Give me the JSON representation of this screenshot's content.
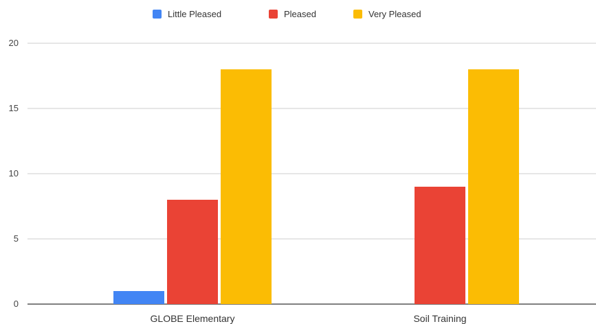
{
  "chart_data": {
    "type": "bar",
    "categories": [
      "GLOBE Elementary",
      "Soil Training"
    ],
    "series": [
      {
        "name": "Little Pleased",
        "color": "#4285f4",
        "values": [
          1,
          0
        ]
      },
      {
        "name": "Pleased",
        "color": "#ea4335",
        "values": [
          8,
          9
        ]
      },
      {
        "name": "Very Pleased",
        "color": "#fbbc04",
        "values": [
          18,
          18
        ]
      }
    ],
    "ylim": [
      0,
      20
    ],
    "yticks": [
      0,
      5,
      10,
      15,
      20
    ],
    "grid": true,
    "legend_position": "top-center",
    "title": "",
    "xlabel": "",
    "ylabel": ""
  }
}
